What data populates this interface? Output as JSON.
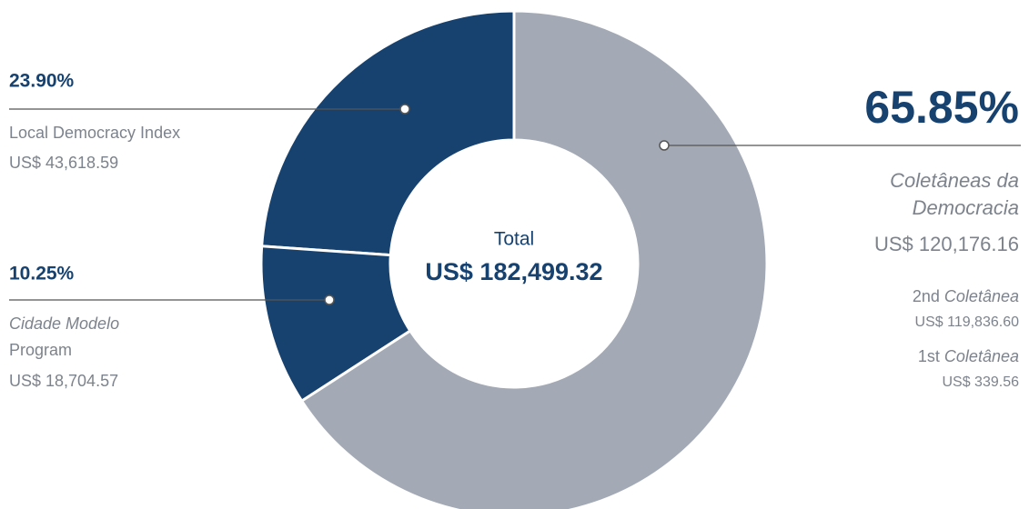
{
  "chart_data": {
    "type": "donut",
    "center_title": "Total",
    "center_value": "US$ 182,499.32",
    "values": [
      65.85,
      10.25,
      23.9
    ],
    "value_labels": [
      "65.85%",
      "10.25%",
      "23.90%"
    ],
    "colors": [
      "#a3aab5",
      "#17426f",
      "#17426f"
    ],
    "labels": [
      [
        "Coletâneas da",
        "Democracia"
      ],
      [
        "Cidade Modelo",
        "Program"
      ],
      [
        "Local Democracy Index"
      ]
    ],
    "amounts": [
      "US$ 120,176.16",
      "US$ 18,704.57",
      "US$ 43,618.59"
    ],
    "breakdown": [
      {
        "ordinal": "2nd",
        "name": "Coletânea",
        "amount": "US$ 119,836.60"
      },
      {
        "ordinal": "1st",
        "name": "Coletânea",
        "amount": "US$ 339.56"
      }
    ]
  }
}
